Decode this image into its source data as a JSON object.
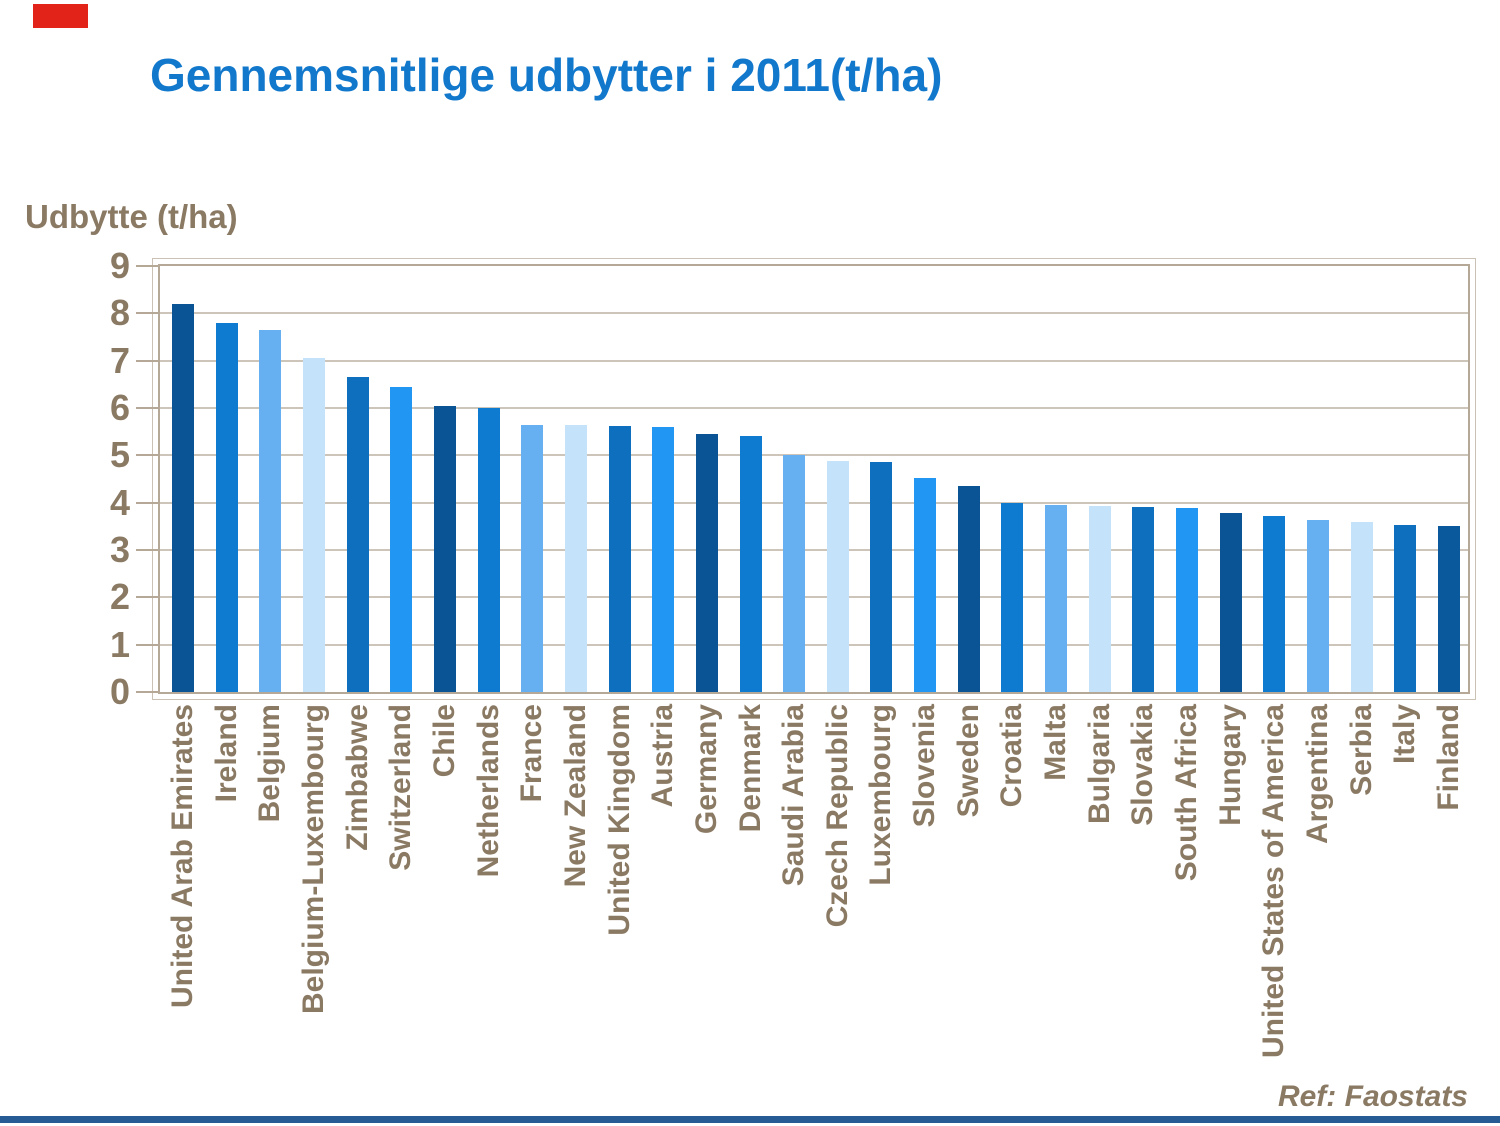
{
  "slide": {
    "title": "Gennemsnitlige udbytter i 2011(t/ha)",
    "title_color": "#1278CC",
    "reference": "Ref: Faostats",
    "text_brown": "#8A7963",
    "accent_red_color": "#E2231A",
    "footer_bar_color": "#275B93",
    "frame_color": "#B5A897",
    "gridline_color": "#CDC5B9"
  },
  "chart_data": {
    "type": "bar",
    "title": "Gennemsnitlige udbytter i 2011(t/ha)",
    "ylabel": "Udbytte (t/ha)",
    "xlabel": "",
    "ylim": [
      0,
      9
    ],
    "yticks": [
      0,
      1,
      2,
      3,
      4,
      5,
      6,
      7,
      8,
      9
    ],
    "grid": true,
    "legend": false,
    "categories": [
      "United Arab Emirates",
      "Ireland",
      "Belgium",
      "Belgium-Luxembourg",
      "Zimbabwe",
      "Switzerland",
      "Chile",
      "Netherlands",
      "France",
      "New Zealand",
      "United Kingdom",
      "Austria",
      "Germany",
      "Denmark",
      "Saudi Arabia",
      "Czech Republic",
      "Luxembourg",
      "Slovenia",
      "Sweden",
      "Croatia",
      "Malta",
      "Bulgaria",
      "Slovakia",
      "South Africa",
      "Hungary",
      "United States of America",
      "Argentina",
      "Serbia",
      "Italy",
      "Finland"
    ],
    "values": [
      8.2,
      7.8,
      7.65,
      7.05,
      6.65,
      6.45,
      6.05,
      6.0,
      5.65,
      5.65,
      5.63,
      5.6,
      5.45,
      5.4,
      5.0,
      4.88,
      4.85,
      4.52,
      4.35,
      4.0,
      3.95,
      3.93,
      3.9,
      3.88,
      3.78,
      3.72,
      3.63,
      3.6,
      3.52,
      3.5
    ],
    "bar_colors": [
      "#0A5394",
      "#0F7BD0",
      "#66AFF0",
      "#C4E2FA",
      "#0E6FBE",
      "#2196F3",
      "#0A5394",
      "#0F7BD0",
      "#66AFF0",
      "#C4E2FA",
      "#0E6FBE",
      "#2196F3",
      "#0A5394",
      "#0F7BD0",
      "#66AFF0",
      "#C4E2FA",
      "#0E6FBE",
      "#2196F3",
      "#0A5394",
      "#0F7BD0",
      "#66AFF0",
      "#C4E2FA",
      "#0E6FBE",
      "#2196F3",
      "#0A5394",
      "#0F7BD0",
      "#66AFF0",
      "#C4E2FA",
      "#0E6FBE",
      "#0A599C"
    ],
    "source_note": "Ref: Faostats"
  }
}
